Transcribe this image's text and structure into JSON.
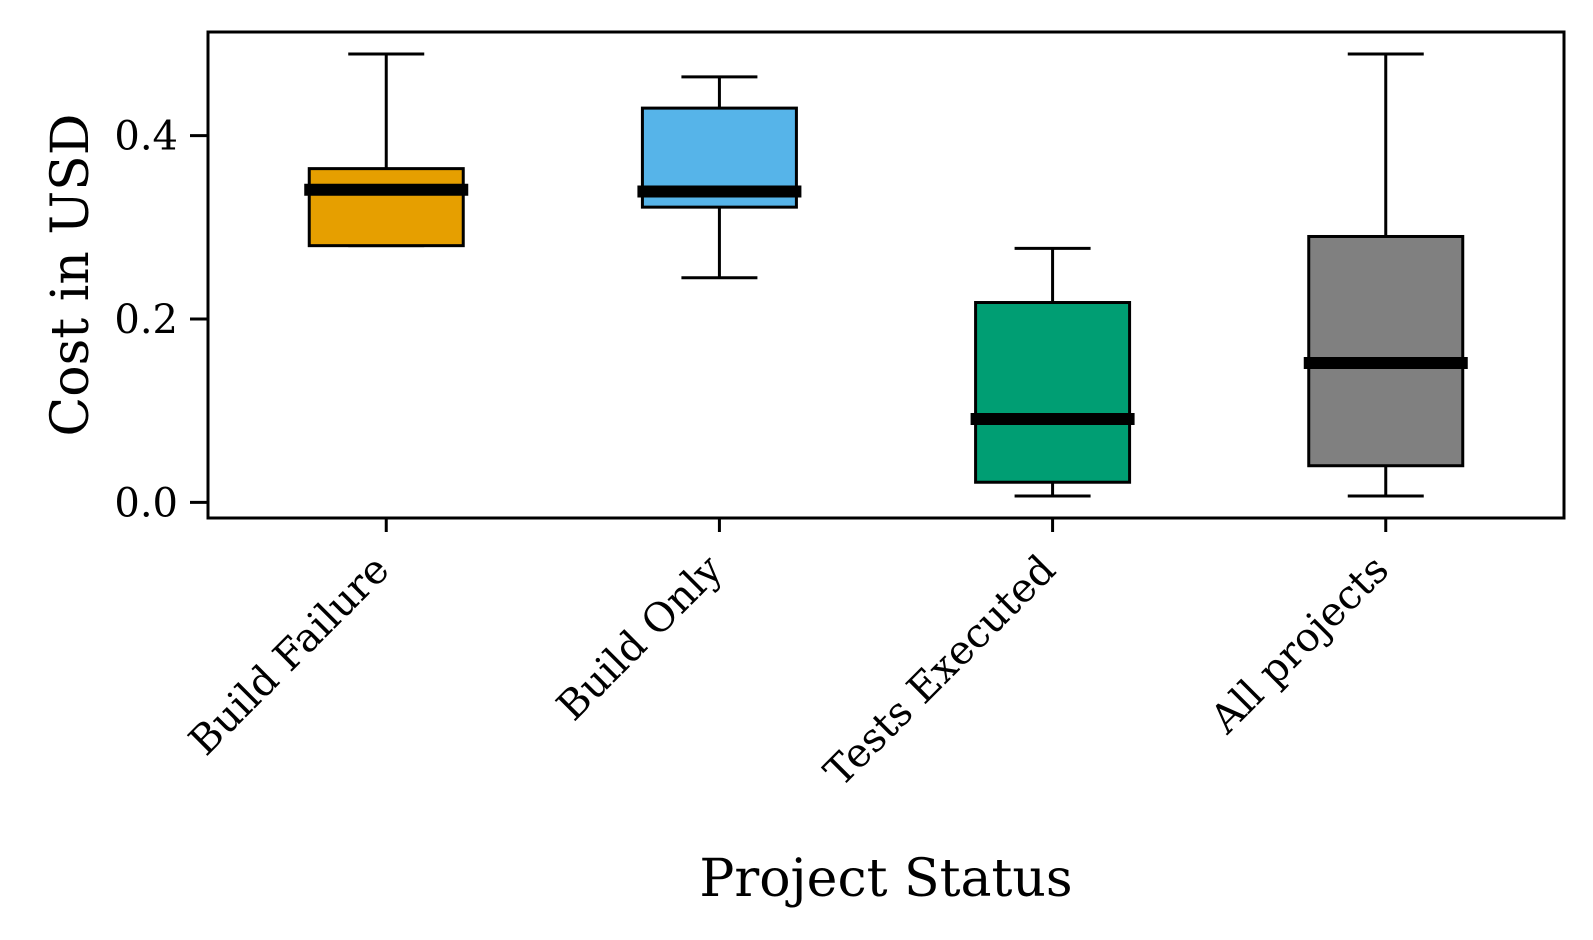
{
  "chart_data": {
    "type": "box",
    "title": "",
    "xlabel": "Project Status",
    "ylabel": "Cost in USD",
    "ylim": [
      -0.017,
      0.513
    ],
    "yticks": [
      0.0,
      0.2,
      0.4
    ],
    "ytick_labels": [
      "0.0",
      "0.2",
      "0.4"
    ],
    "categories": [
      "Build Failure",
      "Build Only",
      "Tests Executed",
      "All projects"
    ],
    "boxes": [
      {
        "category": "Build Failure",
        "whisker_low": 0.28,
        "q1": 0.28,
        "median": 0.341,
        "q3": 0.364,
        "whisker_high": 0.489,
        "color": "#E69F00"
      },
      {
        "category": "Build Only",
        "whisker_low": 0.245,
        "q1": 0.322,
        "median": 0.339,
        "q3": 0.43,
        "whisker_high": 0.464,
        "color": "#56B4E9"
      },
      {
        "category": "Tests Executed",
        "whisker_low": 0.007,
        "q1": 0.022,
        "median": 0.091,
        "q3": 0.218,
        "whisker_high": 0.277,
        "color": "#009E73"
      },
      {
        "category": "All projects",
        "whisker_low": 0.007,
        "q1": 0.04,
        "median": 0.152,
        "q3": 0.29,
        "whisker_high": 0.489,
        "color": "#808080"
      }
    ],
    "grid": false,
    "legend": "none"
  }
}
